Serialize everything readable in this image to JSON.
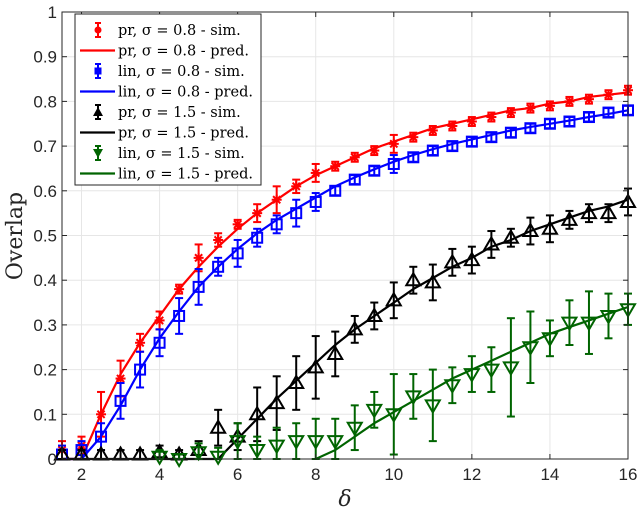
{
  "chart_data": {
    "type": "line",
    "title": "",
    "xlabel": "δ",
    "ylabel": "Overlap",
    "xlim": [
      1.5,
      16
    ],
    "ylim": [
      0,
      1
    ],
    "xticks": [
      2,
      4,
      6,
      8,
      10,
      12,
      14,
      16
    ],
    "yticks": [
      0,
      0.1,
      0.2,
      0.3,
      0.4,
      0.5,
      0.6,
      0.7,
      0.8,
      0.9,
      1
    ],
    "grid": true,
    "legend_position": "upper left",
    "x": [
      1.5,
      2,
      2.5,
      3,
      3.5,
      4,
      4.5,
      5,
      5.5,
      6,
      6.5,
      7,
      7.5,
      8,
      8.5,
      9,
      9.5,
      10,
      10.5,
      11,
      11.5,
      12,
      12.5,
      13,
      13.5,
      14,
      14.5,
      15,
      15.5,
      16
    ],
    "series": [
      {
        "name": "pr, σ = 0.8 - sim.",
        "kind": "errorbar",
        "marker": "asterisk",
        "color": "#ff0000",
        "values": [
          0.02,
          0.03,
          0.1,
          0.18,
          0.26,
          0.31,
          0.38,
          0.45,
          0.49,
          0.525,
          0.55,
          0.58,
          0.61,
          0.64,
          0.655,
          0.675,
          0.69,
          0.705,
          0.72,
          0.735,
          0.745,
          0.755,
          0.765,
          0.775,
          0.785,
          0.79,
          0.8,
          0.805,
          0.815,
          0.825
        ],
        "errors": [
          0.02,
          0.02,
          0.05,
          0.04,
          0.02,
          0.02,
          0.01,
          0.03,
          0.015,
          0.01,
          0.02,
          0.03,
          0.015,
          0.02,
          0.01,
          0.01,
          0.01,
          0.02,
          0.01,
          0.01,
          0.01,
          0.01,
          0.01,
          0.01,
          0.01,
          0.01,
          0.01,
          0.01,
          0.01,
          0.01
        ]
      },
      {
        "name": "pr, σ = 0.8 - pred.",
        "kind": "line",
        "color": "#ff0000",
        "values": [
          0,
          0,
          0.1,
          0.19,
          0.26,
          0.32,
          0.38,
          0.43,
          0.475,
          0.515,
          0.55,
          0.58,
          0.61,
          0.635,
          0.655,
          0.675,
          0.695,
          0.71,
          0.725,
          0.74,
          0.75,
          0.76,
          0.77,
          0.78,
          0.785,
          0.795,
          0.8,
          0.81,
          0.815,
          0.82
        ]
      },
      {
        "name": "lin, σ = 0.8 - sim.",
        "kind": "errorbar",
        "marker": "square",
        "color": "#0000ff",
        "values": [
          0.01,
          0.02,
          0.05,
          0.13,
          0.2,
          0.26,
          0.32,
          0.385,
          0.43,
          0.46,
          0.495,
          0.525,
          0.55,
          0.575,
          0.6,
          0.625,
          0.645,
          0.66,
          0.675,
          0.69,
          0.7,
          0.71,
          0.72,
          0.73,
          0.74,
          0.75,
          0.755,
          0.765,
          0.775,
          0.78
        ],
        "errors": [
          0.02,
          0.02,
          0.03,
          0.04,
          0.04,
          0.03,
          0.04,
          0.04,
          0.02,
          0.03,
          0.02,
          0.02,
          0.03,
          0.02,
          0.01,
          0.01,
          0.01,
          0.02,
          0.01,
          0.01,
          0.01,
          0.01,
          0.01,
          0.01,
          0.01,
          0.01,
          0.01,
          0.01,
          0.01,
          0.01
        ]
      },
      {
        "name": "lin, σ = 0.8 - pred.",
        "kind": "line",
        "color": "#0000ff",
        "values": [
          0,
          0,
          0.05,
          0.12,
          0.2,
          0.27,
          0.33,
          0.385,
          0.43,
          0.47,
          0.505,
          0.535,
          0.56,
          0.585,
          0.61,
          0.63,
          0.648,
          0.665,
          0.68,
          0.693,
          0.705,
          0.715,
          0.725,
          0.735,
          0.743,
          0.75,
          0.757,
          0.765,
          0.772,
          0.78
        ]
      },
      {
        "name": "pr, σ = 1.5 - sim.",
        "kind": "errorbar",
        "marker": "triangle-up",
        "color": "#000000",
        "values": [
          0.01,
          0.01,
          0.01,
          0.01,
          0.01,
          0.015,
          0.01,
          0.02,
          0.07,
          0.05,
          0.1,
          0.125,
          0.17,
          0.205,
          0.235,
          0.29,
          0.32,
          0.355,
          0.4,
          0.395,
          0.44,
          0.445,
          0.48,
          0.495,
          0.51,
          0.515,
          0.535,
          0.55,
          0.55,
          0.575
        ],
        "errors": [
          0.01,
          0.01,
          0.01,
          0.01,
          0.01,
          0.015,
          0.01,
          0.02,
          0.04,
          0.03,
          0.06,
          0.06,
          0.06,
          0.07,
          0.05,
          0.03,
          0.03,
          0.04,
          0.03,
          0.04,
          0.03,
          0.03,
          0.03,
          0.02,
          0.03,
          0.03,
          0.02,
          0.02,
          0.02,
          0.03
        ]
      },
      {
        "name": "pr, σ = 1.5 - pred.",
        "kind": "line",
        "color": "#000000",
        "values": [
          0,
          0,
          0,
          0,
          0,
          0,
          0,
          0,
          0,
          0.045,
          0.09,
          0.135,
          0.175,
          0.215,
          0.255,
          0.29,
          0.32,
          0.35,
          0.38,
          0.405,
          0.43,
          0.45,
          0.475,
          0.49,
          0.51,
          0.525,
          0.54,
          0.555,
          0.565,
          0.58
        ]
      },
      {
        "name": "lin, σ = 1.5 - sim.",
        "kind": "errorbar",
        "marker": "triangle-down",
        "color": "#006400",
        "values": [
          null,
          null,
          null,
          null,
          null,
          0.005,
          0.0,
          0.015,
          0.005,
          0.04,
          0.02,
          0.03,
          0.04,
          0.04,
          0.04,
          0.07,
          0.11,
          0.1,
          0.14,
          0.12,
          0.165,
          0.19,
          0.2,
          0.205,
          0.25,
          0.27,
          0.305,
          0.305,
          0.32,
          0.335
        ],
        "errors": [
          null,
          null,
          null,
          null,
          null,
          0.015,
          0.01,
          0.02,
          0.02,
          0.04,
          0.03,
          0.04,
          0.04,
          0.05,
          0.05,
          0.05,
          0.04,
          0.09,
          0.05,
          0.08,
          0.04,
          0.04,
          0.05,
          0.11,
          0.08,
          0.04,
          0.05,
          0.07,
          0.05,
          0.035
        ]
      },
      {
        "name": "lin, σ = 1.5 - pred.",
        "kind": "line",
        "color": "#006400",
        "values": [
          null,
          null,
          null,
          null,
          null,
          null,
          null,
          null,
          null,
          null,
          null,
          null,
          null,
          0,
          0.02,
          0.05,
          0.08,
          0.105,
          0.13,
          0.155,
          0.18,
          0.2,
          0.22,
          0.24,
          0.26,
          0.28,
          0.295,
          0.31,
          0.325,
          0.34
        ]
      }
    ]
  },
  "labels": {
    "xlabel": "δ",
    "ylabel": "Overlap",
    "xticks": [
      "2",
      "4",
      "6",
      "8",
      "10",
      "12",
      "14",
      "16"
    ],
    "yticks": [
      "0",
      "0.1",
      "0.2",
      "0.3",
      "0.4",
      "0.5",
      "0.6",
      "0.7",
      "0.8",
      "0.9",
      "1"
    ]
  },
  "legend": [
    {
      "label": "pr, σ = 0.8 - sim.",
      "color": "#ff0000",
      "type": "marker"
    },
    {
      "label": "pr, σ = 0.8 - pred.",
      "color": "#ff0000",
      "type": "line"
    },
    {
      "label": "lin, σ = 0.8 - sim.",
      "color": "#0000ff",
      "type": "marker"
    },
    {
      "label": "lin, σ = 0.8 - pred.",
      "color": "#0000ff",
      "type": "line"
    },
    {
      "label": "pr, σ = 1.5 - sim.",
      "color": "#000000",
      "type": "marker"
    },
    {
      "label": "pr, σ = 1.5 - pred.",
      "color": "#000000",
      "type": "line"
    },
    {
      "label": "lin, σ = 1.5 - sim.",
      "color": "#006400",
      "type": "marker"
    },
    {
      "label": "lin, σ = 1.5 - pred.",
      "color": "#006400",
      "type": "line"
    }
  ]
}
